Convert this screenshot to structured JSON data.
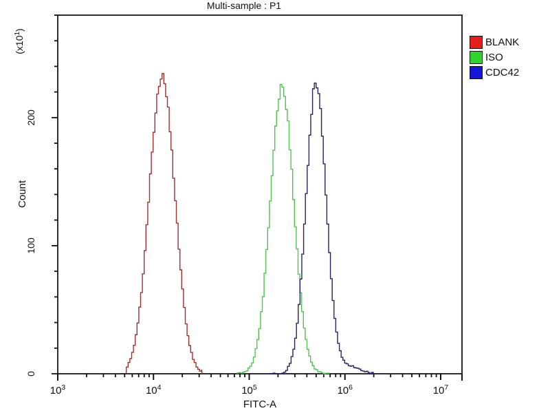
{
  "title": "Multi-sample : P1",
  "axes": {
    "x": {
      "label": "FITC-A",
      "scale": "log10",
      "tick_exponents": [
        3,
        4,
        5,
        6,
        7
      ],
      "minor_multipliers": [
        2,
        3,
        4,
        5,
        6,
        7,
        8,
        9
      ]
    },
    "y": {
      "label": "Count",
      "multiplier_prefix": "(x10",
      "multiplier_exponent": "1",
      "multiplier_suffix": ")",
      "major_ticks": [
        0,
        100,
        200
      ],
      "minor_step": 20,
      "max": 280
    }
  },
  "legend": {
    "items": [
      {
        "label": "BLANK",
        "color": "#e32020"
      },
      {
        "label": "ISO",
        "color": "#2ed32e"
      },
      {
        "label": "CDC42",
        "color": "#1515d6"
      }
    ]
  },
  "chart_data": {
    "type": "line",
    "subtype": "flow-cytometry-histogram",
    "title": "Multi-sample : P1",
    "xlabel": "FITC-A",
    "ylabel": "Count",
    "y_units": "x10^1",
    "x_scale": "log10",
    "xlim": [
      1000,
      16700000
    ],
    "ylim": [
      0,
      280
    ],
    "grid": false,
    "legend_position": "top-right-outside",
    "series": [
      {
        "name": "BLANK",
        "color": "#a03030",
        "peak_x": 12300,
        "peak_y": 233,
        "sigma_log10": 0.134,
        "range": [
          5200,
          32000
        ]
      },
      {
        "name": "ISO",
        "color": "#52c352",
        "peak_x": 220000,
        "peak_y": 224,
        "sigma_log10": 0.122,
        "range": [
          75000,
          680000
        ]
      },
      {
        "name": "CDC42",
        "color": "#23235f",
        "peak_x": 500000,
        "peak_y": 227,
        "sigma_log10": 0.105,
        "range": [
          150000,
          2200000
        ],
        "tail": {
          "peak_x": 1050000,
          "peak_y": 6,
          "sigma_log10": 0.12
        }
      }
    ]
  }
}
